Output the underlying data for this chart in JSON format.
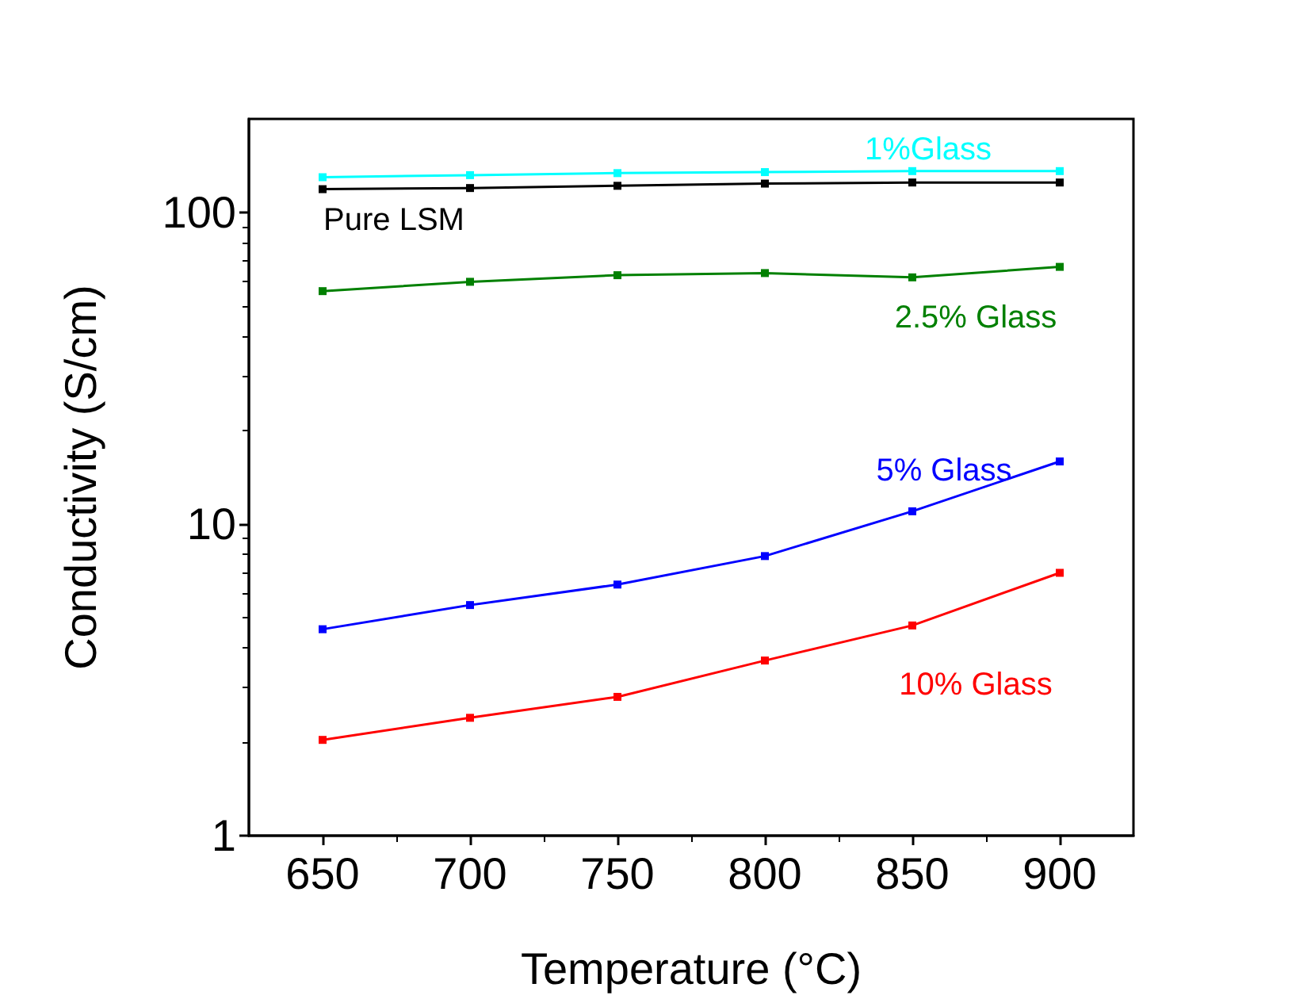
{
  "chart_data": {
    "type": "line",
    "xlabel": "Temperature (°C)",
    "ylabel": "Conductivity (S/cm)",
    "x": [
      650,
      700,
      750,
      800,
      850,
      900
    ],
    "xlim": [
      625,
      925
    ],
    "xticks": [
      650,
      700,
      750,
      800,
      850,
      900
    ],
    "ylim": [
      1,
      200
    ],
    "yticks": [
      1,
      10,
      100
    ],
    "log": "y",
    "grid": false,
    "legend": false,
    "marker": "square",
    "line_style": "solid",
    "series": [
      {
        "name": "1%Glass",
        "color": "#00ffff",
        "values": [
          130,
          132,
          134,
          135,
          136,
          136
        ]
      },
      {
        "name": "Pure LSM",
        "color": "#000000",
        "values": [
          119,
          120,
          122,
          124,
          125,
          125
        ]
      },
      {
        "name": "2.5% Glass",
        "color": "#008000",
        "values": [
          56,
          60,
          63,
          64,
          62,
          67
        ]
      },
      {
        "name": "5% Glass",
        "color": "#0000ff",
        "values": [
          4.6,
          5.5,
          6.4,
          7.9,
          11.0,
          15.9
        ]
      },
      {
        "name": "10% Glass",
        "color": "#ff0000",
        "values": [
          2.03,
          2.39,
          2.79,
          3.65,
          4.73,
          6.98
        ]
      }
    ]
  }
}
